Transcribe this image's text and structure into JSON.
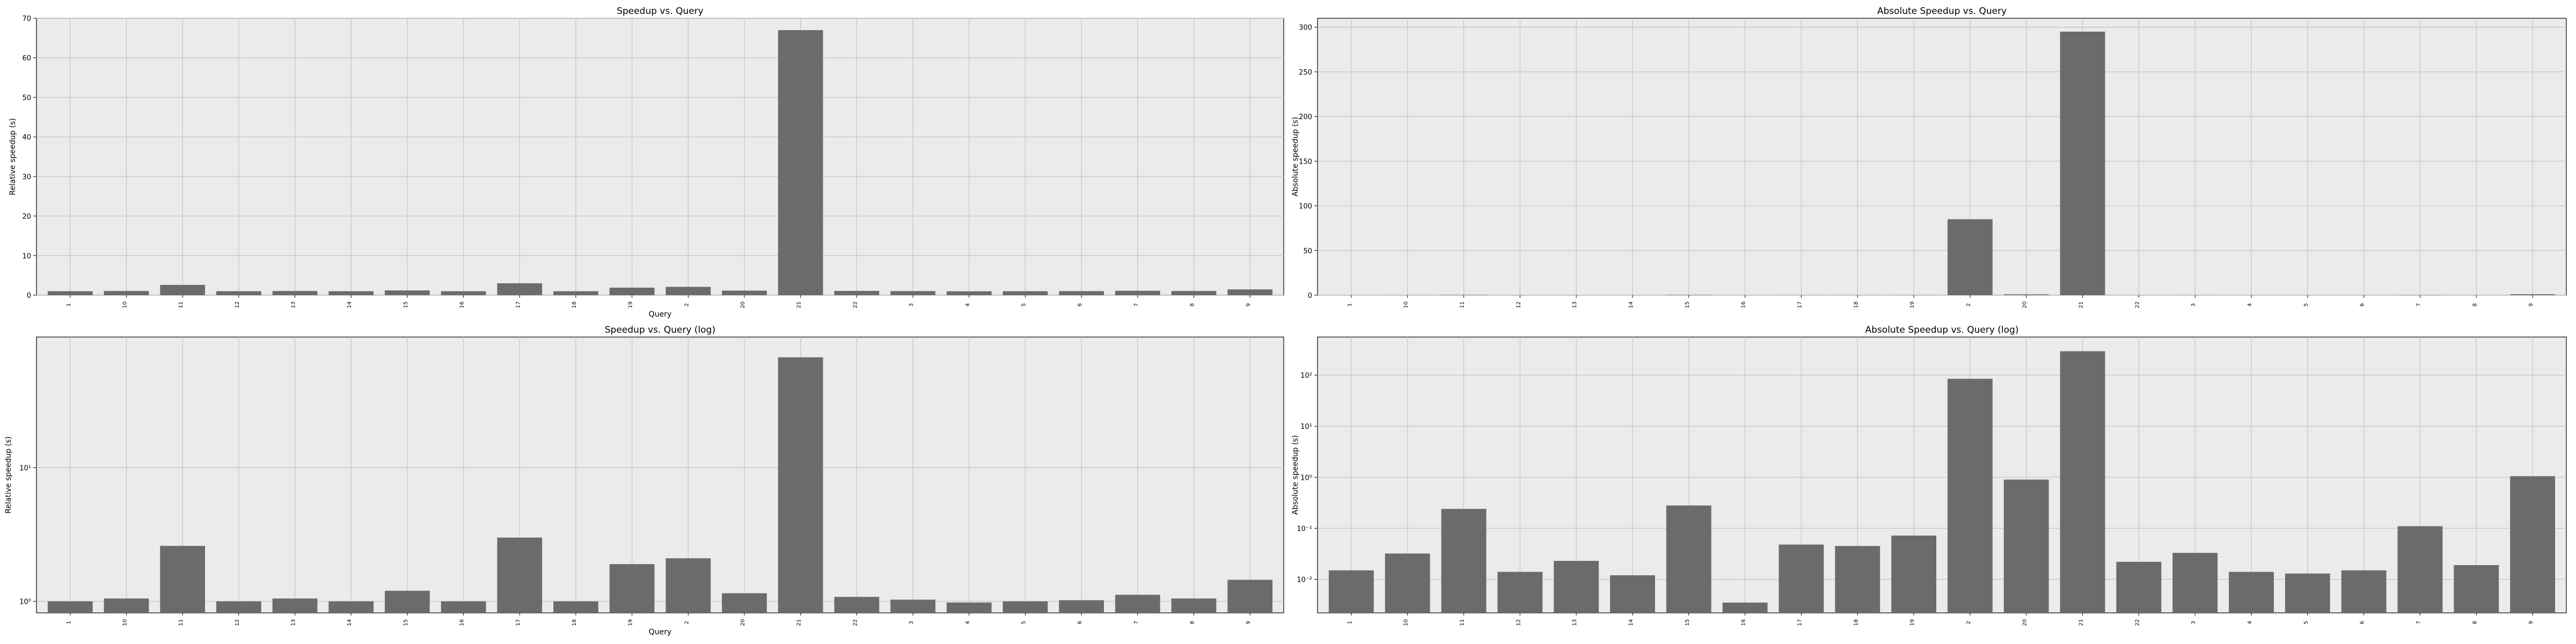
{
  "chart_data": [
    {
      "type": "bar",
      "title": "Speedup vs. Query",
      "xlabel": "Query",
      "ylabel": "Relative speedup (s)",
      "yscale": "linear",
      "ylim": [
        0,
        70
      ],
      "yticks": [
        0,
        10,
        20,
        30,
        40,
        50,
        60,
        70
      ],
      "ytick_labels": [
        "0",
        "10",
        "20",
        "30",
        "40",
        "50",
        "60",
        "70"
      ],
      "grid": true,
      "categories": [
        "1",
        "10",
        "11",
        "12",
        "13",
        "14",
        "15",
        "16",
        "17",
        "18",
        "19",
        "2",
        "20",
        "21",
        "22",
        "3",
        "4",
        "5",
        "6",
        "7",
        "8",
        "9"
      ],
      "values": [
        1.0,
        1.05,
        2.6,
        1.0,
        1.05,
        1.0,
        1.2,
        1.0,
        3.0,
        1.0,
        1.9,
        2.1,
        1.15,
        67.0,
        1.08,
        1.03,
        0.98,
        1.0,
        1.02,
        1.12,
        1.05,
        1.45
      ]
    },
    {
      "type": "bar",
      "title": "Absolute Speedup vs. Query",
      "xlabel": "",
      "ylabel": "Absolute speedup (s)",
      "yscale": "linear",
      "ylim": [
        0,
        310
      ],
      "yticks": [
        0,
        50,
        100,
        150,
        200,
        250,
        300
      ],
      "ytick_labels": [
        "0",
        "50",
        "100",
        "150",
        "200",
        "250",
        "300"
      ],
      "grid": true,
      "categories": [
        "1",
        "10",
        "11",
        "12",
        "13",
        "14",
        "15",
        "16",
        "17",
        "18",
        "19",
        "2",
        "20",
        "21",
        "22",
        "3",
        "4",
        "5",
        "6",
        "7",
        "8",
        "9"
      ],
      "values": [
        0.015,
        0.032,
        0.24,
        0.014,
        0.023,
        0.012,
        0.28,
        0.0035,
        0.048,
        0.045,
        0.072,
        85,
        0.9,
        295,
        0.022,
        0.033,
        0.014,
        0.013,
        0.015,
        0.11,
        0.019,
        1.05
      ]
    },
    {
      "type": "bar",
      "title": "Speedup vs. Query (log)",
      "xlabel": "Query",
      "ylabel": "Relative speedup (s)",
      "yscale": "log",
      "ylim": [
        0.82,
        95
      ],
      "yticks": [
        1,
        10
      ],
      "ytick_labels": [
        "10⁰",
        "10¹"
      ],
      "grid": true,
      "categories": [
        "1",
        "10",
        "11",
        "12",
        "13",
        "14",
        "15",
        "16",
        "17",
        "18",
        "19",
        "2",
        "20",
        "21",
        "22",
        "3",
        "4",
        "5",
        "6",
        "7",
        "8",
        "9"
      ],
      "values": [
        1.0,
        1.05,
        2.6,
        1.0,
        1.05,
        1.0,
        1.2,
        1.0,
        3.0,
        1.0,
        1.9,
        2.1,
        1.15,
        67.0,
        1.08,
        1.03,
        0.98,
        1.0,
        1.02,
        1.12,
        1.05,
        1.45
      ]
    },
    {
      "type": "bar",
      "title": "Absolute Speedup vs. Query (log)",
      "xlabel": "",
      "ylabel": "Absolute speedup (s)",
      "yscale": "log",
      "ylim": [
        0.0022,
        560
      ],
      "yticks": [
        0.01,
        0.1,
        1,
        10,
        100
      ],
      "ytick_labels": [
        "10⁻²",
        "10⁻¹",
        "10⁰",
        "10¹",
        "10²"
      ],
      "grid": true,
      "categories": [
        "1",
        "10",
        "11",
        "12",
        "13",
        "14",
        "15",
        "16",
        "17",
        "18",
        "19",
        "2",
        "20",
        "21",
        "22",
        "3",
        "4",
        "5",
        "6",
        "7",
        "8",
        "9"
      ],
      "values": [
        0.015,
        0.032,
        0.24,
        0.014,
        0.023,
        0.012,
        0.28,
        0.0035,
        0.048,
        0.045,
        0.072,
        85,
        0.9,
        295,
        0.022,
        0.033,
        0.014,
        0.013,
        0.015,
        0.11,
        0.019,
        1.05
      ]
    }
  ]
}
